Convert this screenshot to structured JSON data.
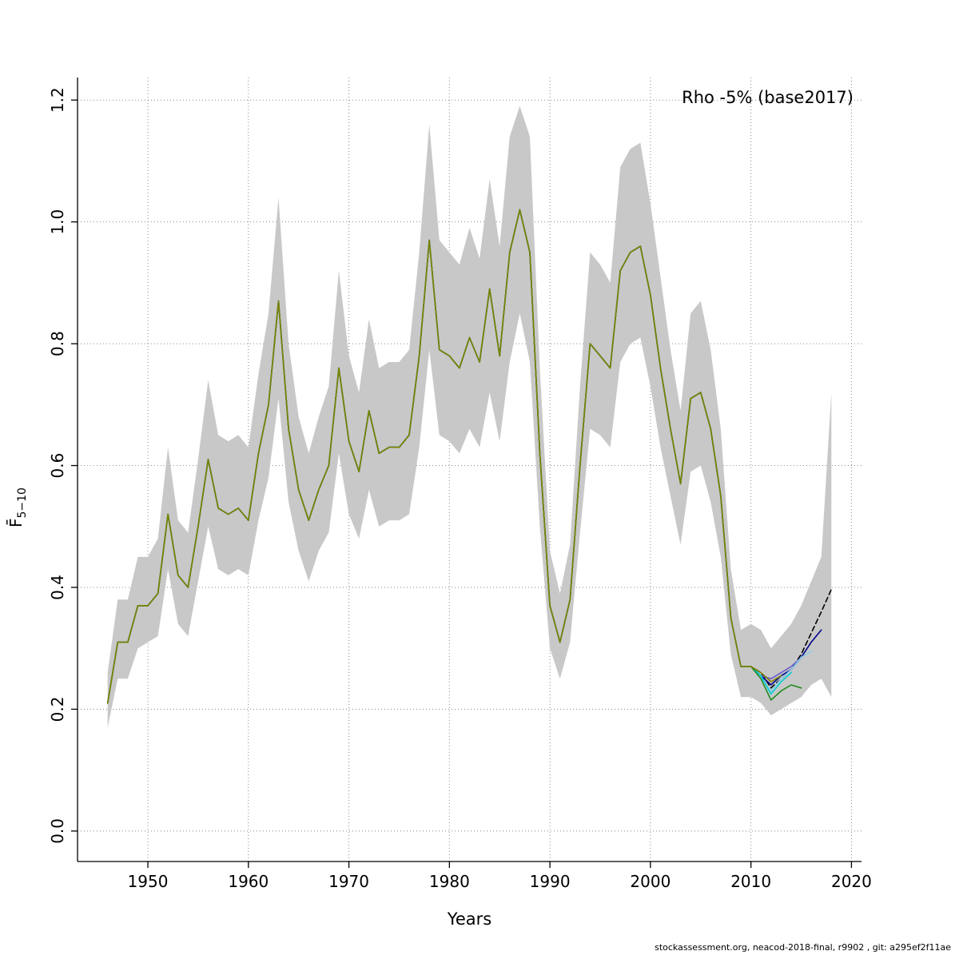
{
  "title": "Rho -5% (base2017)",
  "footer": "stockassessment.org, neacod-2018-final, r9902 , git: a295ef2f11ae",
  "chart_data": {
    "type": "line",
    "title": "Rho -5% (base2017)",
    "xlabel": "Years",
    "ylabel": "F̄5−10",
    "ylabel_main": "F̄",
    "ylabel_sub": "5−10",
    "xlim": [
      1943,
      2021
    ],
    "ylim": [
      -0.05,
      1.237
    ],
    "x_ticks": [
      1950,
      1960,
      1970,
      1980,
      1990,
      2000,
      2010,
      2020
    ],
    "y_ticks": [
      0.0,
      0.2,
      0.4,
      0.6,
      0.8,
      1.0,
      1.2
    ],
    "grid": true,
    "legend_position": "none",
    "band": {
      "color": "#c8c8c8",
      "years_start": 1946,
      "lower": [
        0.17,
        0.25,
        0.25,
        0.3,
        0.31,
        0.32,
        0.43,
        0.34,
        0.32,
        0.41,
        0.5,
        0.43,
        0.42,
        0.43,
        0.42,
        0.51,
        0.58,
        0.71,
        0.54,
        0.46,
        0.41,
        0.46,
        0.49,
        0.62,
        0.52,
        0.48,
        0.56,
        0.5,
        0.51,
        0.51,
        0.52,
        0.63,
        0.79,
        0.65,
        0.64,
        0.62,
        0.66,
        0.63,
        0.72,
        0.64,
        0.77,
        0.85,
        0.77,
        0.5,
        0.3,
        0.25,
        0.31,
        0.49,
        0.66,
        0.65,
        0.63,
        0.77,
        0.8,
        0.81,
        0.73,
        0.63,
        0.55,
        0.47,
        0.59,
        0.6,
        0.54,
        0.45,
        0.29,
        0.22,
        0.22,
        0.21,
        0.19,
        0.2,
        0.21,
        0.22,
        0.24,
        0.25,
        0.22
      ],
      "upper": [
        0.26,
        0.38,
        0.38,
        0.45,
        0.45,
        0.48,
        0.63,
        0.51,
        0.49,
        0.61,
        0.74,
        0.65,
        0.64,
        0.65,
        0.63,
        0.75,
        0.85,
        1.04,
        0.8,
        0.68,
        0.62,
        0.68,
        0.73,
        0.92,
        0.78,
        0.72,
        0.84,
        0.76,
        0.77,
        0.77,
        0.79,
        0.95,
        1.16,
        0.97,
        0.95,
        0.93,
        0.99,
        0.94,
        1.07,
        0.96,
        1.14,
        1.19,
        1.14,
        0.76,
        0.46,
        0.39,
        0.47,
        0.73,
        0.95,
        0.93,
        0.9,
        1.09,
        1.12,
        1.13,
        1.03,
        0.91,
        0.79,
        0.69,
        0.85,
        0.87,
        0.79,
        0.66,
        0.43,
        0.33,
        0.34,
        0.33,
        0.3,
        0.32,
        0.34,
        0.37,
        0.41,
        0.45,
        0.72
      ]
    },
    "common": {
      "years_start": 1946,
      "values": [
        0.21,
        0.31,
        0.31,
        0.37,
        0.37,
        0.39,
        0.52,
        0.42,
        0.4,
        0.5,
        0.61,
        0.53,
        0.52,
        0.53,
        0.51,
        0.62,
        0.7,
        0.87,
        0.66,
        0.56,
        0.51,
        0.56,
        0.6,
        0.76,
        0.64,
        0.59,
        0.69,
        0.62,
        0.63,
        0.63,
        0.65,
        0.78,
        0.97,
        0.79,
        0.78,
        0.76,
        0.81,
        0.77,
        0.89,
        0.78,
        0.95,
        1.02,
        0.95,
        0.62,
        0.37,
        0.31,
        0.38,
        0.6,
        0.8,
        0.78,
        0.76,
        0.92,
        0.95,
        0.96,
        0.88,
        0.76,
        0.66,
        0.57,
        0.71,
        0.72,
        0.66,
        0.55,
        0.35,
        0.27,
        0.27
      ]
    },
    "series": [
      {
        "name": "final-dashed-black",
        "color": "#000000",
        "dash": "6,4",
        "tail_start": 2011,
        "tail": [
          0.26,
          0.235,
          0.25,
          0.265,
          0.29,
          0.325,
          0.36,
          0.397
        ]
      },
      {
        "name": "retro-navy",
        "color": "#00008b",
        "dash": null,
        "tail_start": 2011,
        "tail": [
          0.255,
          0.24,
          0.255,
          0.265,
          0.285,
          0.31,
          0.33
        ]
      },
      {
        "name": "retro-purple",
        "color": "#6a5acd",
        "dash": null,
        "tail_start": 2011,
        "tail": [
          0.255,
          0.25,
          0.26,
          0.27,
          0.285
        ]
      },
      {
        "name": "retro-lightblue",
        "color": "#87ceeb",
        "dash": null,
        "tail_start": 2011,
        "tail": [
          0.25,
          0.23,
          0.25,
          0.265,
          0.285,
          0.295
        ]
      },
      {
        "name": "retro-cyan",
        "color": "#00ced1",
        "dash": null,
        "tail_start": 2011,
        "tail": [
          0.255,
          0.225,
          0.245,
          0.26
        ]
      },
      {
        "name": "retro-green",
        "color": "#228b22",
        "dash": null,
        "tail_start": 2011,
        "tail": [
          0.25,
          0.215,
          0.23,
          0.24,
          0.235
        ]
      },
      {
        "name": "retro-olive",
        "color": "#808000",
        "dash": null,
        "tail_start": 2011,
        "tail": [
          0.26,
          0.245,
          0.255
        ]
      }
    ]
  }
}
